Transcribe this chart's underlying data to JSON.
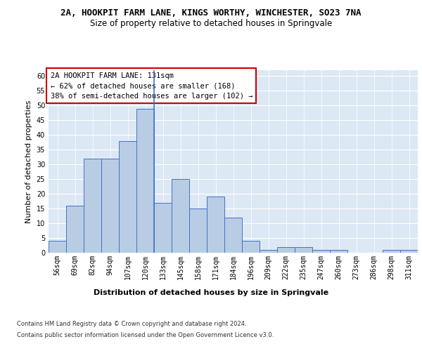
{
  "title_line1": "2A, HOOKPIT FARM LANE, KINGS WORTHY, WINCHESTER, SO23 7NA",
  "title_line2": "Size of property relative to detached houses in Springvale",
  "xlabel": "Distribution of detached houses by size in Springvale",
  "ylabel": "Number of detached properties",
  "categories": [
    "56sqm",
    "69sqm",
    "82sqm",
    "94sqm",
    "107sqm",
    "120sqm",
    "133sqm",
    "145sqm",
    "158sqm",
    "171sqm",
    "184sqm",
    "196sqm",
    "209sqm",
    "222sqm",
    "235sqm",
    "247sqm",
    "260sqm",
    "273sqm",
    "286sqm",
    "298sqm",
    "311sqm"
  ],
  "values": [
    4,
    16,
    32,
    32,
    38,
    49,
    17,
    25,
    15,
    19,
    12,
    4,
    1,
    2,
    2,
    1,
    1,
    0,
    0,
    1,
    1
  ],
  "bar_color": "#b8cce4",
  "bar_edge_color": "#4472c4",
  "annotation_text_line1": "2A HOOKPIT FARM LANE: 131sqm",
  "annotation_text_line2": "← 62% of detached houses are smaller (168)",
  "annotation_text_line3": "38% of semi-detached houses are larger (102) →",
  "annotation_box_color": "#ffffff",
  "annotation_box_edge_color": "#cc0000",
  "vline_x": 5.5,
  "ylim": [
    0,
    62
  ],
  "yticks": [
    0,
    5,
    10,
    15,
    20,
    25,
    30,
    35,
    40,
    45,
    50,
    55,
    60
  ],
  "background_color": "#dde8f5",
  "footer_line1": "Contains HM Land Registry data © Crown copyright and database right 2024.",
  "footer_line2": "Contains public sector information licensed under the Open Government Licence v3.0.",
  "grid_color": "#ffffff",
  "title_fontsize": 9,
  "subtitle_fontsize": 8.5,
  "axis_label_fontsize": 8,
  "tick_fontsize": 7,
  "annotation_fontsize": 7.5,
  "footer_fontsize": 6
}
